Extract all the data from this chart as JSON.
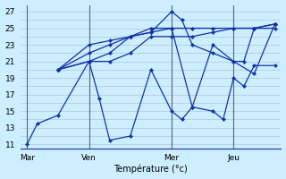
{
  "background_color": "#cceeff",
  "grid_color": "#aabbcc",
  "line_color": "#1133aa",
  "xlabel": "Température (°c)",
  "yticks": [
    11,
    13,
    15,
    17,
    19,
    21,
    23,
    25,
    27
  ],
  "ylim": [
    10.5,
    27.8
  ],
  "xlim": [
    -0.3,
    12.3
  ],
  "day_labels": [
    "Mar",
    "Ven",
    "Mer",
    "Jeu"
  ],
  "day_positions": [
    0,
    3,
    7,
    10
  ],
  "vline_color": "#556677",
  "lines": [
    {
      "x": [
        0,
        0.5,
        1.5,
        3,
        3.5,
        4,
        5,
        6,
        7,
        7.5,
        8,
        9,
        9.5,
        10,
        10.5,
        11,
        12
      ],
      "y": [
        11,
        13.5,
        14.5,
        21,
        16.5,
        11.5,
        12,
        20,
        15,
        14,
        15.5,
        15,
        14,
        19,
        18,
        20.5,
        20.5
      ]
    },
    {
      "x": [
        1.5,
        3,
        4,
        5,
        6,
        7,
        7.5,
        8,
        9,
        10,
        10.5,
        11,
        12
      ],
      "y": [
        20,
        21,
        22,
        24,
        24.5,
        27,
        26,
        23,
        22,
        21,
        21,
        25,
        25.5
      ]
    },
    {
      "x": [
        1.5,
        3,
        4,
        5,
        6,
        7,
        8,
        9,
        10,
        11,
        12
      ],
      "y": [
        20,
        22,
        23,
        24,
        25,
        25,
        15.5,
        23,
        21,
        19.5,
        25.5
      ]
    },
    {
      "x": [
        1.5,
        3,
        4,
        5,
        6,
        7,
        8,
        9,
        10,
        11,
        12
      ],
      "y": [
        20,
        21,
        21,
        22,
        24,
        24,
        24,
        24.5,
        25,
        25,
        25
      ]
    },
    {
      "x": [
        1.5,
        3,
        4,
        5,
        6,
        7,
        8,
        9,
        10,
        11,
        12
      ],
      "y": [
        20,
        23,
        23.5,
        24,
        24.5,
        25,
        25,
        25,
        25,
        25,
        25.5
      ]
    }
  ]
}
